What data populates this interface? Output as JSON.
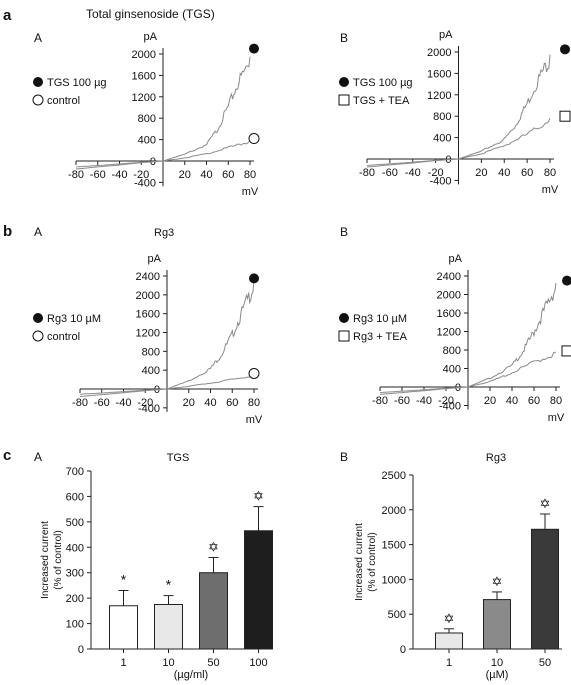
{
  "figure": {
    "rows": [
      {
        "letter": "a",
        "title": "Total ginsenoside (TGS)",
        "subtitle": ""
      },
      {
        "letter": "b",
        "title": "",
        "subtitle": "Rg3"
      },
      {
        "letter": "c",
        "title": "",
        "subtitle": ""
      }
    ]
  },
  "chart_data": [
    {
      "type": "line",
      "panel": "A",
      "ylabel": "pA",
      "xlabel": "mV",
      "xlim": [
        -80,
        80
      ],
      "ylim": [
        -400,
        2200
      ],
      "xticks": [
        -80,
        -60,
        -40,
        -20,
        20,
        40,
        60,
        80
      ],
      "yticks": [
        -400,
        0,
        400,
        800,
        1200,
        1600,
        2000
      ],
      "legend": [
        "TGS 100 µg",
        "control"
      ],
      "series": [
        {
          "name": "TGS 100 µg",
          "marker": "filled-circle",
          "end_marker_y": 2100,
          "x": [
            -80,
            -60,
            -40,
            -20,
            0,
            20,
            40,
            50,
            60,
            70,
            80
          ],
          "y": [
            -150,
            -110,
            -75,
            -30,
            0,
            130,
            320,
            610,
            1060,
            1560,
            1950
          ]
        },
        {
          "name": "control",
          "marker": "open-circle",
          "end_marker_y": 420,
          "x": [
            -80,
            -60,
            -40,
            -20,
            0,
            20,
            40,
            60,
            80
          ],
          "y": [
            -110,
            -85,
            -55,
            -25,
            0,
            60,
            140,
            260,
            380
          ]
        }
      ]
    },
    {
      "type": "line",
      "panel": "B",
      "ylabel": "pA",
      "xlabel": "mV",
      "xlim": [
        -80,
        80
      ],
      "ylim": [
        -400,
        2200
      ],
      "xticks": [
        -80,
        -60,
        -40,
        -20,
        20,
        40,
        60,
        80
      ],
      "yticks": [
        -400,
        0,
        400,
        800,
        1200,
        1600,
        2000
      ],
      "legend": [
        "TGS 100 µg",
        "TGS + TEA"
      ],
      "series": [
        {
          "name": "TGS 100 µg",
          "marker": "filled-circle",
          "end_marker_y": 2050,
          "x": [
            -80,
            -60,
            -40,
            -20,
            0,
            20,
            40,
            50,
            60,
            70,
            80
          ],
          "y": [
            -150,
            -110,
            -75,
            -30,
            0,
            150,
            380,
            660,
            1080,
            1560,
            1950
          ]
        },
        {
          "name": "TGS + TEA",
          "marker": "open-square",
          "end_marker_y": 800,
          "x": [
            -80,
            -60,
            -40,
            -20,
            0,
            20,
            40,
            60,
            80
          ],
          "y": [
            -120,
            -90,
            -60,
            -25,
            0,
            100,
            260,
            480,
            760
          ]
        }
      ]
    },
    {
      "type": "line",
      "panel": "A",
      "ylabel": "pA",
      "xlabel": "mV",
      "xlim": [
        -80,
        80
      ],
      "ylim": [
        -400,
        2600
      ],
      "xticks": [
        -80,
        -60,
        -40,
        -20,
        20,
        40,
        60,
        80
      ],
      "yticks": [
        -400,
        0,
        400,
        800,
        1200,
        1600,
        2000,
        2400
      ],
      "legend": [
        "Rg3 10 µM",
        "control"
      ],
      "series": [
        {
          "name": "Rg3 10 µM",
          "marker": "filled-circle",
          "end_marker_y": 2350,
          "x": [
            -80,
            -60,
            -40,
            -20,
            0,
            20,
            40,
            50,
            60,
            70,
            80
          ],
          "y": [
            -160,
            -120,
            -80,
            -35,
            0,
            180,
            450,
            760,
            1200,
            1750,
            2300
          ]
        },
        {
          "name": "control",
          "marker": "open-circle",
          "end_marker_y": 330,
          "x": [
            -80,
            -60,
            -40,
            -20,
            0,
            20,
            40,
            60,
            80
          ],
          "y": [
            -110,
            -85,
            -55,
            -25,
            0,
            60,
            130,
            210,
            300
          ]
        }
      ]
    },
    {
      "type": "line",
      "panel": "B",
      "ylabel": "pA",
      "xlabel": "mV",
      "xlim": [
        -80,
        80
      ],
      "ylim": [
        -400,
        2600
      ],
      "xticks": [
        -80,
        -60,
        -40,
        -20,
        20,
        40,
        60,
        80
      ],
      "yticks": [
        -400,
        0,
        400,
        800,
        1200,
        1600,
        2000,
        2400
      ],
      "legend": [
        "Rg3 10 µM",
        "Rg3 + TEA"
      ],
      "series": [
        {
          "name": "Rg3 10 µM",
          "marker": "filled-circle",
          "end_marker_y": 2300,
          "x": [
            -80,
            -60,
            -40,
            -20,
            0,
            20,
            40,
            50,
            60,
            70,
            80
          ],
          "y": [
            -160,
            -120,
            -80,
            -35,
            0,
            200,
            480,
            800,
            1240,
            1760,
            2250
          ]
        },
        {
          "name": "Rg3 + TEA",
          "marker": "open-square",
          "end_marker_y": 780,
          "x": [
            -80,
            -60,
            -40,
            -20,
            0,
            20,
            40,
            60,
            80
          ],
          "y": [
            -120,
            -90,
            -60,
            -25,
            0,
            120,
            320,
            560,
            750
          ]
        }
      ]
    },
    {
      "type": "bar",
      "panel": "A",
      "title": "TGS",
      "ylabel": "Increased current\n(% of control)",
      "xlabel": "(µg/ml)",
      "ylim": [
        0,
        700
      ],
      "yticks": [
        0,
        100,
        200,
        300,
        400,
        500,
        600,
        700
      ],
      "categories": [
        "1",
        "10",
        "50",
        "100"
      ],
      "values": [
        170,
        175,
        300,
        465
      ],
      "errors": [
        60,
        35,
        60,
        95
      ],
      "markers": [
        "*",
        "*",
        "✡",
        "✡"
      ],
      "colors": [
        "#ffffff",
        "#e8e8e8",
        "#6e6e6e",
        "#1e1e1e"
      ]
    },
    {
      "type": "bar",
      "panel": "B",
      "title": "Rg3",
      "ylabel": "Increased current\n(% of control)",
      "xlabel": "(µM)",
      "ylim": [
        0,
        2500
      ],
      "yticks": [
        0,
        500,
        1000,
        1500,
        2000,
        2500
      ],
      "categories": [
        "1",
        "10",
        "50"
      ],
      "values": [
        230,
        710,
        1720
      ],
      "errors": [
        60,
        110,
        220
      ],
      "markers": [
        "✡",
        "✡",
        "✡"
      ],
      "colors": [
        "#e8e8e8",
        "#8a8a8a",
        "#3a3a3a"
      ]
    }
  ]
}
